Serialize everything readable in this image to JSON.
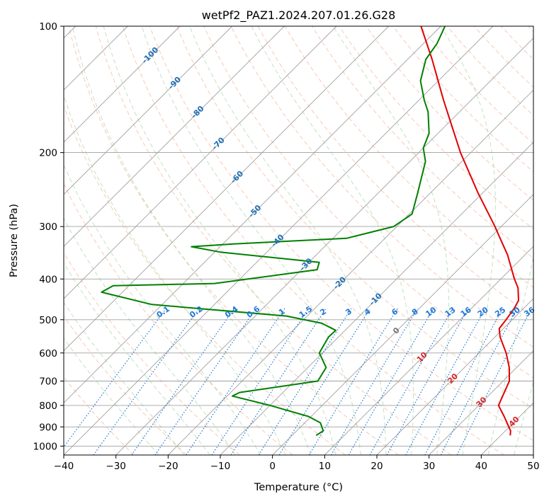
{
  "chart_data": {
    "type": "line",
    "title": "wetPf2_PAZ1.2024.207.01.26.G28",
    "xlabel": "Temperature (°C)",
    "ylabel": "Pressure (hPa)",
    "xlim": [
      -40,
      50
    ],
    "ylim": [
      1050,
      100
    ],
    "y_scale": "log",
    "skew_t": true,
    "grid": true,
    "x_ticks": [
      -40,
      -30,
      -20,
      -10,
      0,
      10,
      20,
      30,
      40,
      50
    ],
    "y_ticks": [
      100,
      200,
      300,
      400,
      500,
      600,
      700,
      800,
      900,
      1000
    ],
    "colors": {
      "temperature": "#e00000",
      "dewpoint": "#008000",
      "dry_adiabat": "#f4a582",
      "moist_adiabat": "#8fc98f",
      "mixing_ratio": "#1f77d4",
      "isotherm": "#a0a0a0",
      "wet_bulb_label": "#1f6fb4",
      "temp_label": "#d62728"
    },
    "series": [
      {
        "name": "",
        "color": "#e00000",
        "points": [
          {
            "p": 943,
            "t": 41.8
          },
          {
            "p": 920,
            "t": 41.0
          },
          {
            "p": 900,
            "t": 39.9
          },
          {
            "p": 850,
            "t": 37.0
          },
          {
            "p": 800,
            "t": 33.8
          },
          {
            "p": 760,
            "t": 32.8
          },
          {
            "p": 700,
            "t": 31.2
          },
          {
            "p": 650,
            "t": 28.6
          },
          {
            "p": 600,
            "t": 25.2
          },
          {
            "p": 550,
            "t": 21.0
          },
          {
            "p": 525,
            "t": 19.2
          },
          {
            "p": 500,
            "t": 18.8
          },
          {
            "p": 470,
            "t": 18.2
          },
          {
            "p": 450,
            "t": 17.5
          },
          {
            "p": 420,
            "t": 15.0
          },
          {
            "p": 400,
            "t": 12.6
          },
          {
            "p": 350,
            "t": 6.6
          },
          {
            "p": 330,
            "t": 3.6
          },
          {
            "p": 300,
            "t": -1.2
          },
          {
            "p": 250,
            "t": -10.8
          },
          {
            "p": 200,
            "t": -22.0
          },
          {
            "p": 150,
            "t": -35.3
          },
          {
            "p": 120,
            "t": -45.3
          },
          {
            "p": 100,
            "t": -53.8
          }
        ]
      },
      {
        "name": "",
        "color": "#008000",
        "points": [
          {
            "p": 943,
            "t": 4.6
          },
          {
            "p": 920,
            "t": 5.1
          },
          {
            "p": 880,
            "t": 3.0
          },
          {
            "p": 850,
            "t": -0.5
          },
          {
            "p": 800,
            "t": -10.0
          },
          {
            "p": 760,
            "t": -19.0
          },
          {
            "p": 745,
            "t": -18.3
          },
          {
            "p": 700,
            "t": -5.5
          },
          {
            "p": 650,
            "t": -6.5
          },
          {
            "p": 600,
            "t": -10.6
          },
          {
            "p": 550,
            "t": -11.9
          },
          {
            "p": 530,
            "t": -11.8
          },
          {
            "p": 510,
            "t": -15.8
          },
          {
            "p": 490,
            "t": -24.0
          },
          {
            "p": 460,
            "t": -52.0
          },
          {
            "p": 430,
            "t": -64.0
          },
          {
            "p": 415,
            "t": -63.0
          },
          {
            "p": 410,
            "t": -44.0
          },
          {
            "p": 380,
            "t": -27.0
          },
          {
            "p": 365,
            "t": -28.0
          },
          {
            "p": 345,
            "t": -49.0
          },
          {
            "p": 335,
            "t": -55.5
          },
          {
            "p": 330,
            "t": -48.0
          },
          {
            "p": 320,
            "t": -27.4
          },
          {
            "p": 300,
            "t": -20.6
          },
          {
            "p": 280,
            "t": -19.5
          },
          {
            "p": 250,
            "t": -22.4
          },
          {
            "p": 210,
            "t": -27.0
          },
          {
            "p": 195,
            "t": -30.0
          },
          {
            "p": 180,
            "t": -31.7
          },
          {
            "p": 160,
            "t": -36.0
          },
          {
            "p": 150,
            "t": -39.0
          },
          {
            "p": 135,
            "t": -43.4
          },
          {
            "p": 120,
            "t": -46.5
          },
          {
            "p": 110,
            "t": -47.4
          },
          {
            "p": 100,
            "t": -49.2
          }
        ]
      }
    ],
    "wet_bulb_labels": [
      "-100",
      "-90",
      "-80",
      "-70",
      "-60",
      "-50",
      "-40",
      "-30",
      "-20",
      "-10"
    ],
    "wet_bulb_label_positions": [
      {
        "t": -100,
        "p": 117.5
      },
      {
        "t": -90,
        "p": 136.8
      },
      {
        "t": -80,
        "p": 160.5
      },
      {
        "t": -70,
        "p": 190.8
      },
      {
        "t": -60,
        "p": 229.2
      },
      {
        "t": -50,
        "p": 276.4
      },
      {
        "t": -40,
        "p": 324.8
      },
      {
        "t": -30,
        "p": 370.1
      },
      {
        "t": -20,
        "p": 409.7
      },
      {
        "t": -10,
        "p": 448.0
      }
    ],
    "mixing_ratio_labels": [
      "0.1",
      "0.2",
      "0.4",
      "0.6",
      "1",
      "1.5",
      "2",
      "3",
      "4",
      "6",
      "8",
      "10",
      "13",
      "16",
      "20",
      "25",
      "30",
      "36"
    ],
    "mixing_ratio_values": [
      0.1,
      0.2,
      0.4,
      0.6,
      1,
      1.5,
      2,
      3,
      4,
      6,
      8,
      10,
      13,
      16,
      20,
      25,
      30,
      36
    ],
    "mixing_ratio_label_pressure": 480,
    "temp_labels": [
      "0",
      "10",
      "20",
      "30",
      "40"
    ],
    "temp_label_positions": [
      {
        "t": 0,
        "p": 532
      },
      {
        "t": 10,
        "p": 615
      },
      {
        "t": 20,
        "p": 692
      },
      {
        "t": 30,
        "p": 787
      },
      {
        "t": 40,
        "p": 876
      }
    ]
  }
}
